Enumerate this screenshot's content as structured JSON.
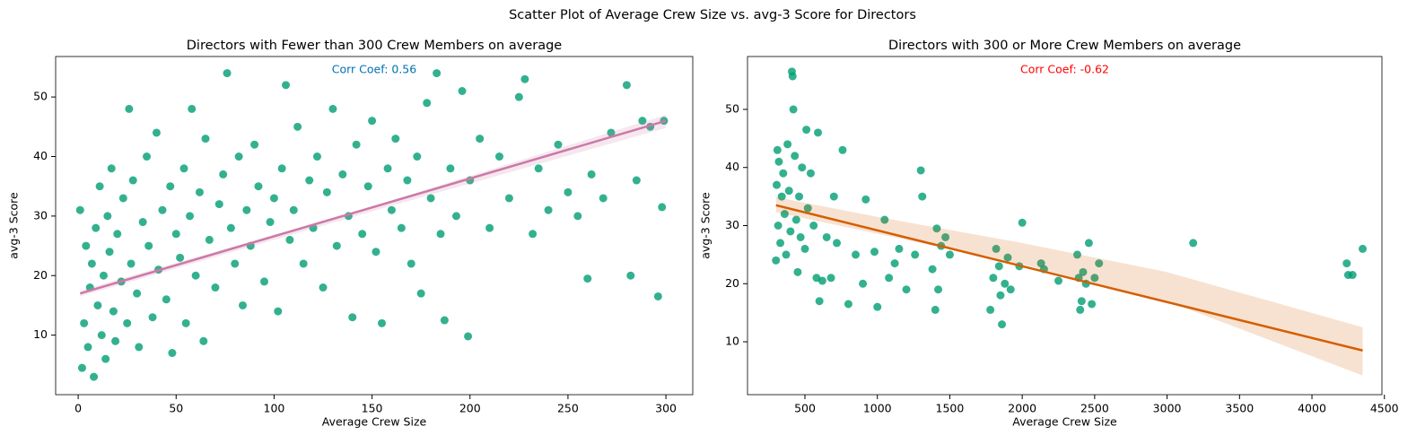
{
  "title": "Scatter Plot of Average Crew Size vs. avg-3 Score for Directors",
  "chart_data": [
    {
      "type": "scatter",
      "title": "Directors with Fewer than 300 Crew Members on average",
      "xlabel": "Average Crew Size",
      "ylabel": "avg-3 Score",
      "annotation": {
        "text": "Corr Coef: 0.56",
        "color": "#0072b2"
      },
      "color": "#009e73",
      "xlim": [
        -11.5,
        313.7
      ],
      "ylim": [
        0,
        56.8
      ],
      "xticks": [
        0,
        50,
        100,
        150,
        200,
        250,
        300
      ],
      "yticks": [
        10,
        20,
        30,
        40,
        50
      ],
      "x": [
        1,
        2,
        3,
        4,
        5,
        6,
        7,
        8,
        9,
        10,
        11,
        12,
        13,
        14,
        15,
        16,
        17,
        18,
        19,
        20,
        22,
        23,
        25,
        26,
        27,
        28,
        30,
        31,
        33,
        35,
        36,
        38,
        40,
        41,
        43,
        45,
        47,
        48,
        50,
        52,
        54,
        55,
        57,
        58,
        60,
        62,
        64,
        65,
        67,
        70,
        72,
        74,
        76,
        78,
        80,
        82,
        84,
        86,
        88,
        90,
        92,
        95,
        98,
        100,
        102,
        104,
        106,
        108,
        110,
        112,
        115,
        118,
        120,
        122,
        125,
        127,
        130,
        132,
        135,
        138,
        140,
        142,
        145,
        148,
        150,
        152,
        155,
        158,
        160,
        162,
        165,
        168,
        170,
        173,
        175,
        178,
        180,
        183,
        185,
        187,
        190,
        193,
        196,
        199,
        200,
        205,
        210,
        215,
        220,
        225,
        228,
        232,
        235,
        240,
        245,
        250,
        255,
        260,
        262,
        268,
        272,
        280,
        282,
        285,
        288,
        292,
        296,
        298,
        299
      ],
      "values": [
        31,
        4.5,
        12,
        25,
        8,
        18,
        22,
        3,
        28,
        15,
        35,
        10,
        20,
        6,
        30,
        24,
        38,
        14,
        9,
        27,
        19,
        33,
        12,
        48,
        22,
        36,
        17,
        8,
        29,
        40,
        25,
        13,
        44,
        21,
        31,
        16,
        35,
        7,
        27,
        23,
        38,
        12,
        30,
        48,
        20,
        34,
        9,
        43,
        26,
        18,
        32,
        37,
        54,
        28,
        22,
        40,
        15,
        31,
        25,
        42,
        35,
        19,
        29,
        33,
        14,
        38,
        52,
        26,
        31,
        45,
        22,
        36,
        28,
        40,
        18,
        34,
        48,
        25,
        37,
        30,
        13,
        42,
        27,
        35,
        46,
        24,
        12,
        38,
        31,
        43,
        28,
        36,
        22,
        40,
        17,
        49,
        33,
        54,
        27,
        12.5,
        38,
        30,
        51,
        9.8,
        36,
        43,
        28,
        40,
        33,
        50,
        53,
        27,
        38,
        31,
        42,
        34,
        30,
        19.5,
        37,
        33,
        44,
        52,
        20,
        36,
        46,
        45,
        16.5,
        31.5,
        46
      ],
      "fit": {
        "x": [
          1,
          300
        ],
        "values": [
          17,
          46
        ],
        "color": "#cc79a7"
      },
      "band": {
        "x": [
          1,
          150,
          300
        ],
        "lower": [
          16.5,
          30.8,
          44.8
        ],
        "upper": [
          17.5,
          31.6,
          47
        ],
        "color": "#cc79a7"
      }
    },
    {
      "type": "scatter",
      "title": "Directors with 300 or More Crew Members on average",
      "xlabel": "Average Crew Size",
      "ylabel": "avg-3 Score",
      "annotation": {
        "text": "Corr Coef: -0.62",
        "color": "#ff0000"
      },
      "color": "#009e73",
      "xlim": [
        103.5,
        4483
      ],
      "ylim": [
        0.9,
        59.1
      ],
      "xticks": [
        500,
        1000,
        1500,
        2000,
        2500,
        3000,
        3500,
        4000,
        4500
      ],
      "yticks": [
        10,
        20,
        30,
        40,
        50
      ],
      "x": [
        300,
        305,
        310,
        315,
        320,
        330,
        340,
        350,
        360,
        370,
        380,
        390,
        400,
        410,
        415,
        420,
        430,
        440,
        450,
        460,
        470,
        480,
        500,
        510,
        520,
        540,
        560,
        580,
        590,
        600,
        620,
        650,
        680,
        700,
        720,
        760,
        800,
        850,
        900,
        920,
        980,
        1000,
        1050,
        1080,
        1120,
        1150,
        1200,
        1260,
        1300,
        1310,
        1380,
        1400,
        1410,
        1420,
        1440,
        1470,
        1500,
        1780,
        1800,
        1820,
        1840,
        1850,
        1860,
        1880,
        1900,
        1920,
        1980,
        2000,
        2130,
        2150,
        2250,
        2380,
        2390,
        2400,
        2410,
        2420,
        2440,
        2460,
        2480,
        2500,
        2530,
        3180,
        4240,
        4250,
        4280,
        4350
      ],
      "values": [
        24,
        37,
        43,
        30,
        41,
        27,
        35,
        39,
        32,
        25,
        44,
        36,
        29,
        56.5,
        55.7,
        50,
        42,
        31,
        22,
        35,
        28,
        40,
        26,
        46.5,
        33,
        39,
        30,
        21,
        46,
        17,
        20.5,
        28,
        21,
        35,
        27,
        43,
        16.5,
        25,
        20,
        34.5,
        25.5,
        16,
        31,
        21,
        23.5,
        26,
        19,
        25,
        39.5,
        35,
        22.5,
        15.5,
        29.5,
        19,
        26.5,
        28,
        25,
        15.5,
        21,
        26,
        23,
        18,
        13,
        20,
        24.5,
        19,
        23,
        30.5,
        23.5,
        22.5,
        20.5,
        25,
        21,
        15.5,
        17,
        22,
        20,
        27,
        16.5,
        21,
        23.5,
        27,
        23.5,
        21.5,
        21.5,
        26
      ],
      "fit": {
        "x": [
          300,
          4350
        ],
        "values": [
          33.5,
          8.5
        ],
        "color": "#d55e00"
      },
      "band": {
        "x": [
          300,
          1000,
          2000,
          3000,
          4350
        ],
        "lower": [
          32.3,
          28.6,
          23.3,
          17,
          4.2
        ],
        "upper": [
          34.9,
          31.5,
          27,
          22,
          12.5
        ],
        "color": "#d55e00"
      }
    }
  ]
}
